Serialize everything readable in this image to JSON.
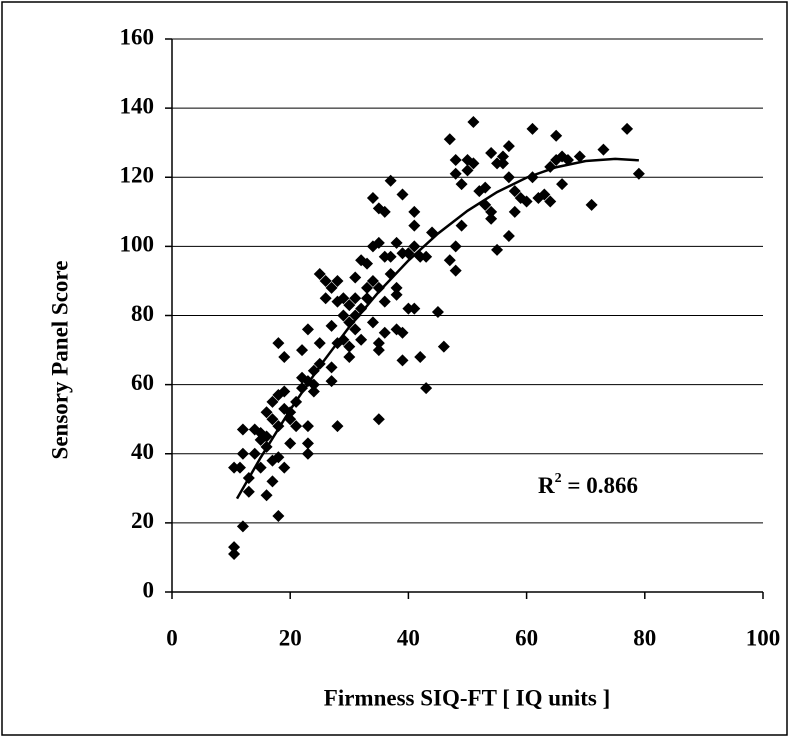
{
  "chart_data": {
    "type": "scatter",
    "x_label": "Firmness SIQ-FT [ IQ units ]",
    "y_label": "Sensory Panel Score",
    "annotation": {
      "text": "R",
      "superscript": "2",
      "suffix": " = 0.866"
    },
    "color": "#000000",
    "x": [
      10.5,
      10.5,
      10.5,
      11.5,
      12,
      12,
      12,
      13,
      13,
      14,
      14,
      15,
      15,
      15,
      16,
      16,
      16,
      16,
      17,
      17,
      17,
      17,
      18,
      18,
      18,
      18,
      18,
      19,
      19,
      19,
      19,
      20,
      20,
      20,
      21,
      21,
      22,
      22,
      22,
      23,
      23,
      23,
      23,
      23,
      24,
      24,
      24,
      25,
      25,
      25,
      26,
      26,
      27,
      27,
      27,
      27,
      28,
      28,
      28,
      28,
      29,
      29,
      29,
      30,
      30,
      30,
      30,
      31,
      31,
      31,
      31,
      32,
      32,
      32,
      33,
      33,
      33,
      34,
      34,
      34,
      34,
      35,
      35,
      35,
      35,
      35,
      35,
      36,
      36,
      36,
      36,
      37,
      37,
      37,
      38,
      38,
      38,
      38,
      39,
      39,
      39,
      39,
      40,
      40,
      41,
      41,
      41,
      41,
      42,
      42,
      43,
      43,
      44,
      45,
      46,
      47,
      47,
      48,
      48,
      48,
      48,
      49,
      49,
      50,
      50,
      51,
      51,
      52,
      53,
      53,
      54,
      54,
      54,
      55,
      55,
      56,
      56,
      57,
      57,
      57,
      58,
      58,
      59,
      60,
      61,
      61,
      62,
      63,
      64,
      64,
      65,
      65,
      66,
      66,
      67,
      69,
      71,
      73,
      77,
      79
    ],
    "values": [
      11,
      13,
      36,
      36,
      19,
      40,
      47,
      29,
      33,
      47,
      40,
      46,
      44,
      36,
      28,
      42,
      45,
      52,
      32,
      38,
      55,
      50,
      22,
      39,
      72,
      57,
      48,
      36,
      53,
      68,
      58,
      43,
      50,
      52,
      55,
      48,
      59,
      70,
      62,
      40,
      43,
      48,
      61,
      76,
      58,
      64,
      60,
      66,
      72,
      92,
      90,
      85,
      77,
      65,
      88,
      61,
      48,
      72,
      84,
      90,
      73,
      80,
      85,
      83,
      68,
      71,
      78,
      76,
      80,
      85,
      91,
      96,
      82,
      73,
      88,
      95,
      85,
      78,
      90,
      100,
      114,
      50,
      70,
      72,
      88,
      101,
      111,
      75,
      84,
      97,
      110,
      92,
      97,
      119,
      76,
      86,
      88,
      101,
      67,
      75,
      98,
      115,
      82,
      98,
      100,
      106,
      110,
      82,
      68,
      97,
      59,
      97,
      104,
      81,
      71,
      96,
      131,
      100,
      93,
      121,
      125,
      106,
      118,
      125,
      122,
      136,
      124,
      116,
      117,
      112,
      127,
      110,
      108,
      99,
      124,
      126,
      124,
      103,
      129,
      120,
      116,
      110,
      114,
      113,
      120,
      134,
      114,
      115,
      113,
      123,
      132,
      125,
      118,
      126,
      125,
      126,
      112,
      128,
      134,
      121
    ],
    "trendline": {
      "x": [
        11,
        15,
        20,
        25,
        30,
        35,
        40,
        45,
        50,
        55,
        60,
        65,
        70,
        75,
        79
      ],
      "values": [
        27.0,
        38.9,
        52.7,
        65.3,
        76.7,
        86.9,
        95.9,
        103.7,
        110.3,
        115.7,
        119.9,
        122.9,
        124.7,
        125.3,
        124.9
      ]
    },
    "xlim": [
      0,
      100
    ],
    "xticks": [
      0,
      20,
      40,
      60,
      80,
      100
    ],
    "ylim": [
      0,
      160
    ],
    "yticks": [
      0,
      20,
      40,
      60,
      80,
      100,
      120,
      140,
      160
    ],
    "grid": true
  }
}
